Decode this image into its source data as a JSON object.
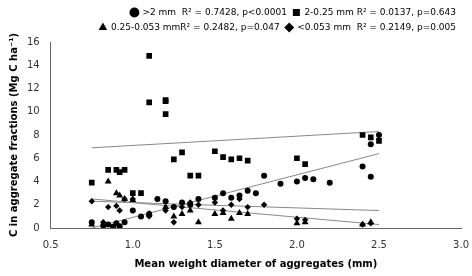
{
  "chart_data": {
    "type": "scatter",
    "xlabel": "Mean weight diameter of aggregates (mm)",
    "ylabel": "C in aggregate fractions (Mg C ha⁻¹)",
    "xlim": [
      0.5,
      3.0
    ],
    "ylim": [
      0,
      16
    ],
    "xticks": [
      0.5,
      {
        "value": 1.0,
        "label": "1.0"
      },
      1.5,
      {
        "value": 2.0,
        "label": "2.0"
      },
      2.5,
      {
        "value": 3.0,
        "label": "3.0"
      }
    ],
    "yticks": [
      0,
      2,
      4,
      6,
      8,
      10,
      12,
      14,
      16
    ],
    "grid": false,
    "legend": "upper right",
    "series": [
      {
        "type": "line",
        "color": "#888888",
        "line_style": "solid",
        "x": [
          0.75,
          2.5
        ],
        "values": [
          0.0,
          6.4
        ]
      },
      {
        "type": "line",
        "color": "#888888",
        "line_style": "solid",
        "x": [
          0.75,
          2.5
        ],
        "values": [
          6.9,
          8.3
        ]
      },
      {
        "type": "line",
        "color": "#888888",
        "line_style": "solid",
        "x": [
          0.75,
          2.5
        ],
        "values": [
          2.5,
          0.3
        ]
      },
      {
        "type": "line",
        "color": "#888888",
        "line_style": "solid",
        "x": [
          0.75,
          2.5
        ],
        "values": [
          2.3,
          1.5
        ]
      },
      {
        "type": "scatter",
        "name": ">2 mm  R² = 0.7428, p<0.0001",
        "color": "#000000",
        "marker": "circle",
        "x": [
          0.75,
          0.82,
          0.85,
          0.88,
          0.9,
          0.92,
          0.95,
          1.0,
          1.05,
          1.1,
          1.15,
          1.2,
          1.25,
          1.3,
          1.35,
          1.4,
          1.5,
          1.55,
          1.6,
          1.65,
          1.7,
          1.75,
          1.8,
          1.9,
          2.0,
          2.05,
          2.1,
          2.2,
          2.4,
          2.45,
          2.45,
          2.5
        ],
        "values": [
          0.5,
          0.2,
          0.3,
          0.1,
          0.4,
          0.15,
          0.5,
          1.5,
          1.0,
          1.2,
          2.5,
          2.3,
          1.8,
          2.2,
          2.0,
          2.5,
          2.6,
          3.0,
          2.6,
          2.8,
          3.2,
          3.0,
          4.5,
          3.8,
          4.0,
          4.3,
          4.2,
          3.9,
          5.3,
          7.2,
          4.4,
          8.0
        ]
      },
      {
        "type": "scatter",
        "name": "2-0.25 mm R² = 0.0137, p=0.643",
        "color": "#000000",
        "marker": "square",
        "x": [
          0.75,
          0.85,
          0.9,
          0.92,
          0.95,
          1.0,
          1.05,
          1.1,
          1.1,
          1.2,
          1.2,
          1.2,
          1.25,
          1.3,
          1.35,
          1.4,
          1.5,
          1.55,
          1.6,
          1.65,
          1.7,
          2.0,
          2.05,
          2.4,
          2.45,
          2.5
        ],
        "values": [
          3.9,
          5.0,
          5.0,
          4.8,
          5.0,
          3.0,
          3.0,
          14.8,
          10.8,
          11.0,
          10.9,
          9.8,
          5.9,
          6.5,
          4.5,
          4.5,
          6.6,
          6.1,
          5.9,
          6.0,
          5.8,
          6.0,
          5.5,
          8.0,
          7.8,
          7.5
        ]
      },
      {
        "type": "scatter",
        "name": "0.25-0.053 mmR² = 0.2482, p=0.047",
        "color": "#000000",
        "marker": "triangle",
        "x": [
          0.75,
          0.85,
          0.9,
          0.92,
          0.95,
          1.0,
          1.1,
          1.2,
          1.25,
          1.3,
          1.35,
          1.4,
          1.5,
          1.55,
          1.6,
          1.65,
          1.7,
          2.0,
          2.05,
          2.4,
          2.45
        ],
        "values": [
          0.3,
          4.0,
          3.0,
          2.8,
          2.5,
          2.4,
          1.2,
          1.8,
          1.0,
          1.2,
          1.5,
          0.5,
          1.2,
          1.3,
          0.8,
          1.3,
          1.2,
          0.4,
          0.5,
          0.3,
          0.5
        ]
      },
      {
        "type": "scatter",
        "name": "<0.053 mm  R² = 0.2149, p=0.005",
        "color": "#000000",
        "marker": "diamond",
        "x": [
          0.75,
          0.82,
          0.85,
          0.9,
          0.92,
          0.95,
          1.0,
          1.1,
          1.2,
          1.25,
          1.3,
          1.35,
          1.4,
          1.5,
          1.55,
          1.6,
          1.65,
          1.7,
          1.8,
          2.0,
          2.05,
          2.4,
          2.45
        ],
        "values": [
          2.3,
          0.5,
          1.8,
          1.9,
          1.5,
          2.5,
          2.5,
          1.0,
          1.5,
          0.5,
          1.8,
          2.2,
          2.0,
          2.2,
          1.5,
          2.0,
          2.5,
          1.8,
          2.0,
          0.8,
          0.7,
          0.3,
          0.4
        ]
      }
    ]
  }
}
